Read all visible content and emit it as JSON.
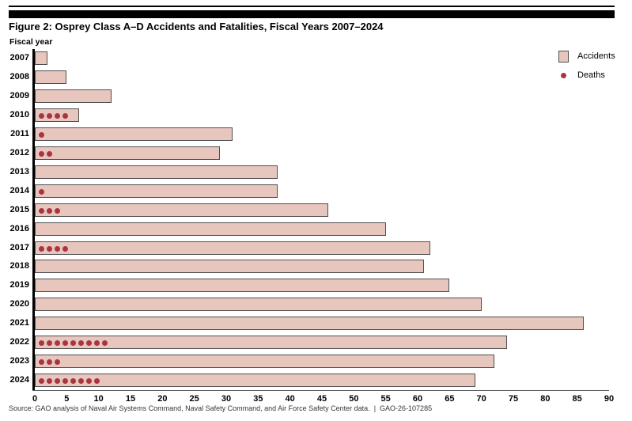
{
  "page": {
    "title": "Figure 2: Osprey Class A–D Accidents and Fatalities, Fiscal Years 2007–2024",
    "axis_label": "Fiscal year",
    "source": "Source: GAO analysis of Naval Air Systems Command, Naval Safety Command, and Air Force Safety Center data.  |  GAO-26-107285"
  },
  "legend": {
    "accidents_label": "Accidents",
    "deaths_label": "Deaths"
  },
  "colors": {
    "bar_fill": "#e7c6be",
    "bar_border": "#4f4f50",
    "death_dot": "#a93541",
    "axis": "#000000"
  },
  "chart_data": {
    "type": "bar",
    "orientation": "horizontal",
    "title": "Figure 2: Osprey Class A–D Accidents and Fatalities, Fiscal Years 2007–2024",
    "ylabel": "Fiscal year",
    "xlabel": "",
    "categories": [
      "2007",
      "2008",
      "2009",
      "2010",
      "2011",
      "2012",
      "2013",
      "2014",
      "2015",
      "2016",
      "2017",
      "2018",
      "2019",
      "2020",
      "2021",
      "2022",
      "2023",
      "2024"
    ],
    "series": [
      {
        "name": "Accidents",
        "style": "bar",
        "values": [
          2,
          5,
          12,
          7,
          31,
          29,
          38,
          38,
          46,
          55,
          62,
          61,
          65,
          70,
          86,
          74,
          72,
          69
        ]
      },
      {
        "name": "Deaths",
        "style": "dots",
        "values": [
          0,
          0,
          0,
          4,
          1,
          2,
          0,
          1,
          3,
          0,
          4,
          0,
          0,
          0,
          0,
          9,
          3,
          8
        ]
      }
    ],
    "xlim": [
      0,
      90
    ],
    "xticks": [
      0,
      5,
      10,
      15,
      20,
      25,
      30,
      35,
      40,
      45,
      50,
      55,
      60,
      65,
      70,
      75,
      80,
      85,
      90
    ],
    "grid": false,
    "legend_position": "top-right"
  }
}
